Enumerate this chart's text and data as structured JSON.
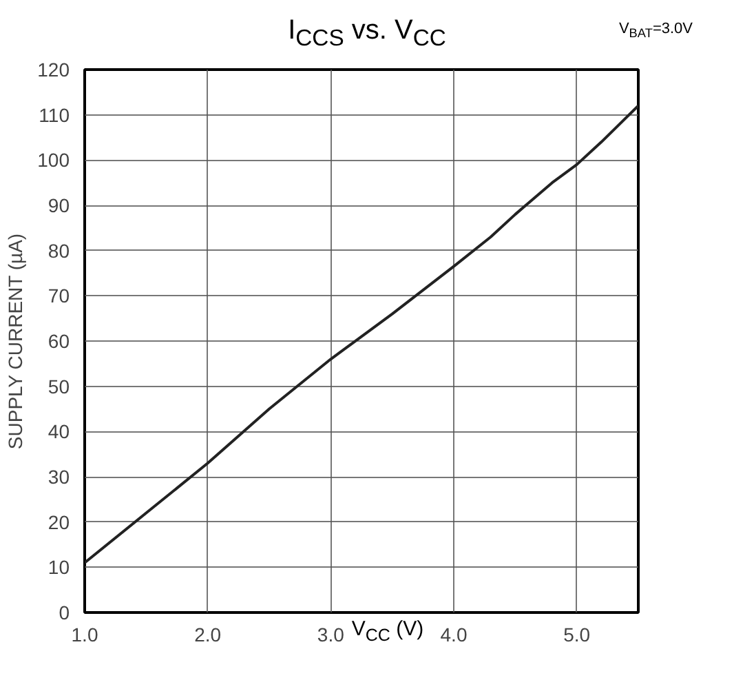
{
  "chart_data": {
    "type": "line",
    "title": "I$_{CCS}$ vs. V$_{CC}$",
    "annotations": [
      "V$_{BAT}$=3.0V"
    ],
    "xlabel": "V$_{CC}$ (V)",
    "ylabel": "SUPPLY CURRENT (µA)",
    "x": [
      1.0,
      1.5,
      2.0,
      2.5,
      3.0,
      3.5,
      4.0,
      4.3,
      4.5,
      4.8,
      5.0,
      5.2,
      5.5
    ],
    "series": [
      {
        "color": "#222222",
        "values": [
          11,
          22,
          33,
          45,
          56,
          66,
          76.5,
          83,
          88,
          95,
          99,
          104,
          112
        ]
      }
    ],
    "xlim": [
      1.0,
      5.5
    ],
    "ylim": [
      0,
      120
    ],
    "xticks": [
      {
        "value": 1.0,
        "label": "1.0"
      },
      {
        "value": 2.0,
        "label": "2.0"
      },
      {
        "value": 3.0,
        "label": "3.0"
      },
      {
        "value": 4.0,
        "label": "4.0"
      },
      {
        "value": 5.0,
        "label": "5.0"
      }
    ],
    "yticks": [
      0,
      10,
      20,
      30,
      40,
      50,
      60,
      70,
      80,
      90,
      100,
      110,
      120
    ],
    "grid": true,
    "line_style": "solid",
    "marker": "none"
  }
}
